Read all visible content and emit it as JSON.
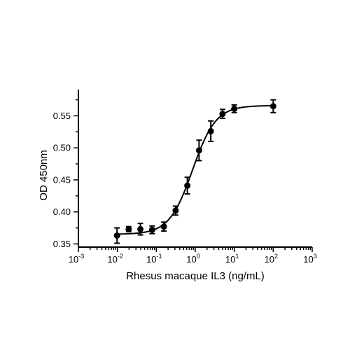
{
  "chart_data": {
    "type": "scatter",
    "title": "",
    "xlabel": "Rhesus macaque IL3 (ng/mL)",
    "ylabel": "OD 450nm",
    "x_scale": "log10",
    "xlim": [
      0.001,
      1000
    ],
    "ylim": [
      0.345,
      0.58
    ],
    "x_ticks": [
      {
        "value": 0.001,
        "base": "10",
        "exp": "-3"
      },
      {
        "value": 0.01,
        "base": "10",
        "exp": "-2"
      },
      {
        "value": 0.1,
        "base": "10",
        "exp": "-1"
      },
      {
        "value": 1,
        "base": "10",
        "exp": "0"
      },
      {
        "value": 10,
        "base": "10",
        "exp": "1"
      },
      {
        "value": 100,
        "base": "10",
        "exp": "2"
      },
      {
        "value": 1000,
        "base": "10",
        "exp": "3"
      }
    ],
    "y_ticks": [
      {
        "value": 0.35,
        "label": "0.35"
      },
      {
        "value": 0.4,
        "label": "0.40"
      },
      {
        "value": 0.45,
        "label": "0.45"
      },
      {
        "value": 0.5,
        "label": "0.50"
      },
      {
        "value": 0.55,
        "label": "0.55"
      }
    ],
    "points": [
      {
        "x": 0.0098,
        "y": 0.363,
        "err": 0.012
      },
      {
        "x": 0.0195,
        "y": 0.373,
        "err": 0.004
      },
      {
        "x": 0.039,
        "y": 0.373,
        "err": 0.009
      },
      {
        "x": 0.078,
        "y": 0.372,
        "err": 0.006
      },
      {
        "x": 0.156,
        "y": 0.377,
        "err": 0.007
      },
      {
        "x": 0.3125,
        "y": 0.402,
        "err": 0.007
      },
      {
        "x": 0.625,
        "y": 0.441,
        "err": 0.013
      },
      {
        "x": 1.25,
        "y": 0.496,
        "err": 0.016
      },
      {
        "x": 2.5,
        "y": 0.526,
        "err": 0.016
      },
      {
        "x": 5,
        "y": 0.553,
        "err": 0.007
      },
      {
        "x": 10,
        "y": 0.561,
        "err": 0.006
      },
      {
        "x": 100,
        "y": 0.565,
        "err": 0.01
      }
    ],
    "fit_curve": {
      "model": "4PL",
      "bottom": 0.365,
      "top": 0.566,
      "ec50": 0.85,
      "hill": 1.45
    }
  }
}
